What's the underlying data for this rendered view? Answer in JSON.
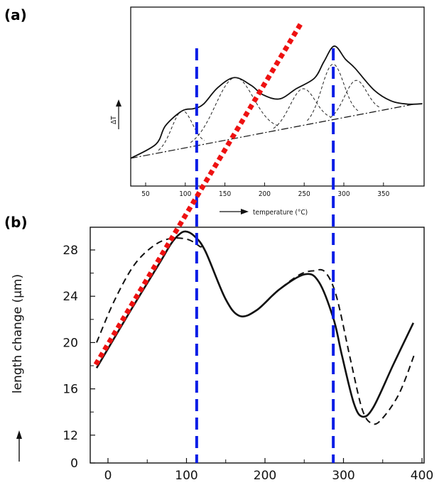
{
  "panel_labels": {
    "a": "(a)",
    "b": "(b)"
  },
  "chart_data": [
    {
      "id": "a",
      "type": "line",
      "xlabel": "temperature (°C)",
      "ylabel": "ΔT",
      "xticks": [
        50,
        100,
        150,
        200,
        250,
        300,
        350
      ],
      "xlim": [
        30,
        400
      ],
      "ylim": [
        0,
        100
      ],
      "grid": false,
      "series": [
        {
          "style": "solid",
          "points": [
            [
              31,
              15.5
            ],
            [
              63,
              23.4
            ],
            [
              75,
              33.7
            ],
            [
              96,
              42
            ],
            [
              111,
              43.3
            ],
            [
              123,
              45.8
            ],
            [
              141,
              55
            ],
            [
              162,
              60.6
            ],
            [
              183,
              56.3
            ],
            [
              198,
              51
            ],
            [
              219,
              48.7
            ],
            [
              240,
              54.4
            ],
            [
              263,
              60.3
            ],
            [
              275,
              69.6
            ],
            [
              288,
              78.2
            ],
            [
              302,
              70.9
            ],
            [
              314,
              65.9
            ],
            [
              338,
              53.7
            ],
            [
              359,
              47.7
            ],
            [
              380,
              45.8
            ],
            [
              399,
              46
            ]
          ]
        },
        {
          "style": "dash-dot",
          "role": "baseline",
          "points": [
            [
              31,
              15.5
            ],
            [
              389,
              45.8
            ]
          ]
        }
      ],
      "components": [
        {
          "style": "dashed",
          "center": 96,
          "height": 21,
          "width": 13
        },
        {
          "style": "dashed",
          "center": 162,
          "height": 34,
          "width": 24
        },
        {
          "style": "dashed",
          "center": 248,
          "height": 20.5,
          "width": 16
        },
        {
          "style": "dashed",
          "center": 286,
          "height": 31,
          "width": 14
        },
        {
          "style": "dashed",
          "center": 315,
          "height": 19.5,
          "width": 14
        }
      ]
    },
    {
      "id": "b",
      "type": "line",
      "xlabel": "",
      "ylabel": "length change (µm)",
      "xticks": [
        0,
        100,
        200,
        300,
        400
      ],
      "yticks": [
        0,
        12,
        16,
        20,
        24,
        28
      ],
      "xlim": [
        -25,
        400
      ],
      "ylim": [
        0,
        30
      ],
      "grid": false,
      "series": [
        {
          "style": "solid",
          "points": [
            [
              -14.5,
              17.8
            ],
            [
              30,
              22.9
            ],
            [
              66,
              26.9
            ],
            [
              80,
              28.5
            ],
            [
              90,
              29.3
            ],
            [
              98.7,
              29.6
            ],
            [
              110,
              29.2
            ],
            [
              124,
              27.9
            ],
            [
              149.5,
              23.8
            ],
            [
              167.7,
              22.3
            ],
            [
              189.5,
              22.8
            ],
            [
              218.5,
              24.6
            ],
            [
              251,
              25.9
            ],
            [
              269,
              25.2
            ],
            [
              287.5,
              22
            ],
            [
              298,
              18.9
            ],
            [
              313,
              14.8
            ],
            [
              324,
              13.6
            ],
            [
              338,
              14.4
            ],
            [
              363.5,
              18.1
            ],
            [
              389,
              21.7
            ]
          ]
        },
        {
          "style": "dashed",
          "points": [
            [
              -14.5,
              20
            ],
            [
              8,
              23.6
            ],
            [
              33.4,
              26.7
            ],
            [
              59,
              28.4
            ],
            [
              80.6,
              29
            ],
            [
              102,
              28.9
            ],
            [
              117,
              28.3
            ],
            [
              124,
              27.9
            ],
            [
              149.5,
              23.8
            ],
            [
              167.7,
              22.3
            ],
            [
              189.5,
              22.8
            ],
            [
              218.5,
              24.6
            ],
            [
              245,
              25.9
            ],
            [
              262,
              26.2
            ],
            [
              276.5,
              26.1
            ],
            [
              291,
              24
            ],
            [
              309,
              18.5
            ],
            [
              324,
              14.2
            ],
            [
              336.5,
              13
            ],
            [
              349,
              13.4
            ],
            [
              371,
              15.6
            ],
            [
              391,
              19.1
            ]
          ]
        }
      ]
    }
  ],
  "annotations": {
    "vertical_lines_temperature_c": [
      113,
      287
    ],
    "vertical_line_color": "#0a1ee6",
    "red_dotted_line_points_panel_b": [
      [
        -15.6,
        18.1
      ],
      [
        247,
        47.7
      ]
    ],
    "red_dotted_line_color": "#ee1111"
  }
}
